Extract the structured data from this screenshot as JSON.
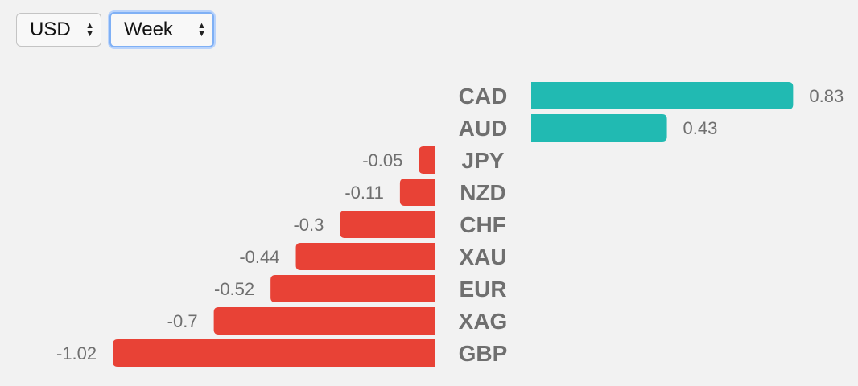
{
  "controls": {
    "currency": {
      "selected": "USD"
    },
    "period": {
      "selected": "Week"
    }
  },
  "colors": {
    "positive": "#21bab2",
    "negative": "#e84236"
  },
  "chart_data": {
    "type": "bar",
    "orientation": "horizontal",
    "categories": [
      "CAD",
      "AUD",
      "JPY",
      "NZD",
      "CHF",
      "XAU",
      "EUR",
      "XAG",
      "GBP"
    ],
    "values": [
      0.83,
      0.43,
      -0.05,
      -0.11,
      -0.3,
      -0.44,
      -0.52,
      -0.7,
      -1.02
    ],
    "value_labels": [
      "0.83",
      "0.43",
      "-0.05",
      "-0.11",
      "-0.3",
      "-0.44",
      "-0.52",
      "-0.7",
      "-1.02"
    ],
    "title": "",
    "xlabel": "",
    "ylabel": "",
    "grid": false,
    "legend": "none"
  }
}
